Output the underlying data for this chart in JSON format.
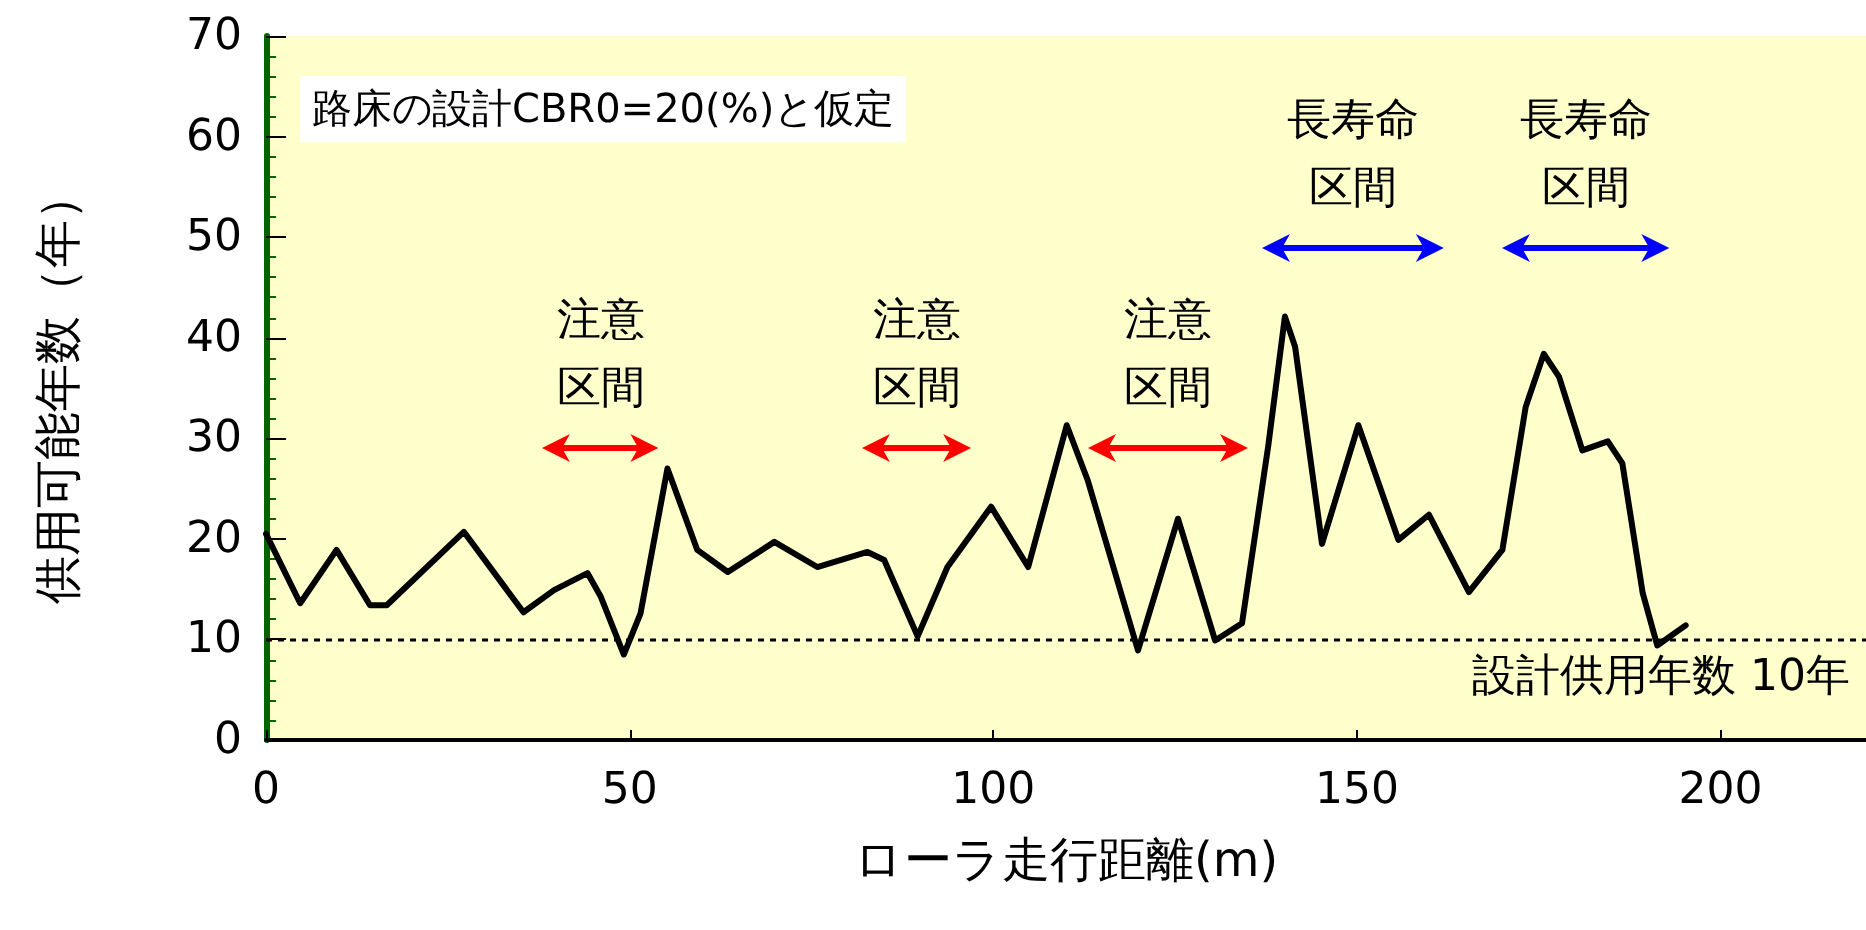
{
  "chart_data": {
    "type": "line",
    "xlabel": "ローラ走行距離(m)",
    "ylabel": "供用可能年数（年）",
    "x": [
      0,
      4.7,
      9.7,
      14.3,
      16.6,
      27.2,
      35.4,
      39.6,
      44.2,
      46,
      49.2,
      51.5,
      55.2,
      59.3,
      63.5,
      69.9,
      75.8,
      82.7,
      85,
      89.6,
      93.7,
      99.7,
      104.8,
      110.1,
      113,
      119.9,
      125.4,
      130.5,
      134.2,
      137.8,
      140.1,
      141.5,
      145.2,
      150.2,
      155.7,
      159.9,
      165.4,
      170,
      173.2,
      175.7,
      177.8,
      181,
      184.5,
      186.5,
      189.3,
      191.3,
      195.2
    ],
    "series": [
      {
        "color": "#000000",
        "values": [
          20.5,
          13.6,
          18.9,
          13.4,
          13.4,
          20.7,
          12.7,
          14.9,
          16.6,
          14.3,
          8.5,
          12.6,
          27,
          18.9,
          16.7,
          19.7,
          17.2,
          18.7,
          17.9,
          10.3,
          17.2,
          23.2,
          17.2,
          31.3,
          25.8,
          8.9,
          22,
          9.9,
          11.6,
          29.2,
          42.1,
          39.1,
          19.5,
          31.3,
          19.9,
          22.4,
          14.7,
          18.9,
          33.1,
          38.4,
          36.1,
          28.8,
          29.7,
          27.5,
          14.6,
          9.4,
          11.4
        ]
      }
    ],
    "xlim": [
      0,
      220
    ],
    "xticks": [
      0,
      50,
      100,
      150,
      200
    ],
    "ylim": [
      0,
      70
    ],
    "yticks": [
      0,
      10,
      20,
      30,
      40,
      50,
      60,
      70
    ],
    "grid": false,
    "marker": "none",
    "line_style": "solid",
    "ref_lines": [
      {
        "axis": "y",
        "value": 10,
        "label": "設計供用年数 10年",
        "color": "#000000",
        "line_style": "dotted"
      }
    ],
    "annotations": [
      "路床の設計CBR0=20(%)と仮定",
      "注意区間",
      "注意区間",
      "注意区間",
      "長寿命区間",
      "長寿命区間"
    ]
  }
}
